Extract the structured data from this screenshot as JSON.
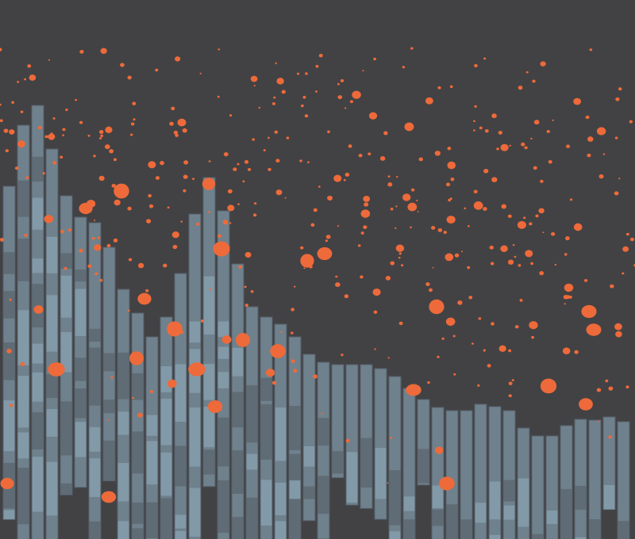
{
  "colors": {
    "background": "#424244",
    "bar": "#6f818d",
    "bar_light": "#88a2b2",
    "bar_dark": "#5b666e",
    "bar_edge": "#55606a",
    "dot": "#ee6a3a"
  }
}
